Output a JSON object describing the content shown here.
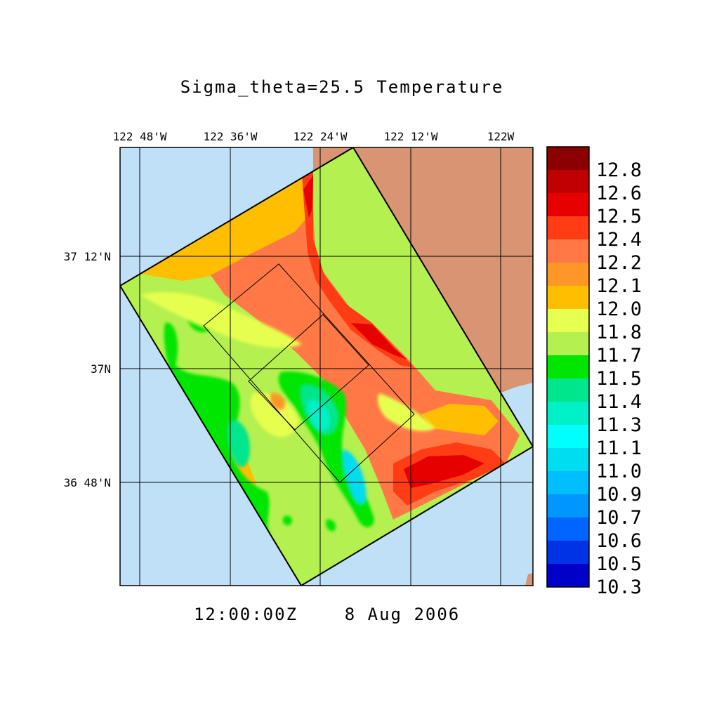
{
  "title": "Sigma_theta=25.5 Temperature",
  "timestamp": {
    "time": "12:00:00Z",
    "date": "8 Aug 2006"
  },
  "longitude_ticks": [
    "122 48'W",
    "122 36'W",
    "122 24'W",
    "122 12'W",
    "122W"
  ],
  "latitude_ticks": [
    "37 12'N",
    "37N",
    "36 48'N"
  ],
  "colorbar": {
    "labels": [
      "12.8",
      "12.6",
      "12.5",
      "12.4",
      "12.2",
      "12.1",
      "12.0",
      "11.8",
      "11.7",
      "11.5",
      "11.4",
      "11.3",
      "11.1",
      "11.0",
      "10.9",
      "10.7",
      "10.6",
      "10.5",
      "10.3"
    ],
    "colors_top_to_bottom": [
      "#8b0000",
      "#c00000",
      "#e60000",
      "#ff3c14",
      "#ff7846",
      "#ff9628",
      "#ffbe00",
      "#e6ff50",
      "#b4f050",
      "#00e600",
      "#00e68c",
      "#00f0c8",
      "#00ffff",
      "#00dcf0",
      "#00beff",
      "#0096ff",
      "#0064ff",
      "#0032e6",
      "#0000c8"
    ]
  },
  "colors": {
    "ocean": "#c0e0f8",
    "land": "#d89473",
    "grid": "#000000"
  }
}
